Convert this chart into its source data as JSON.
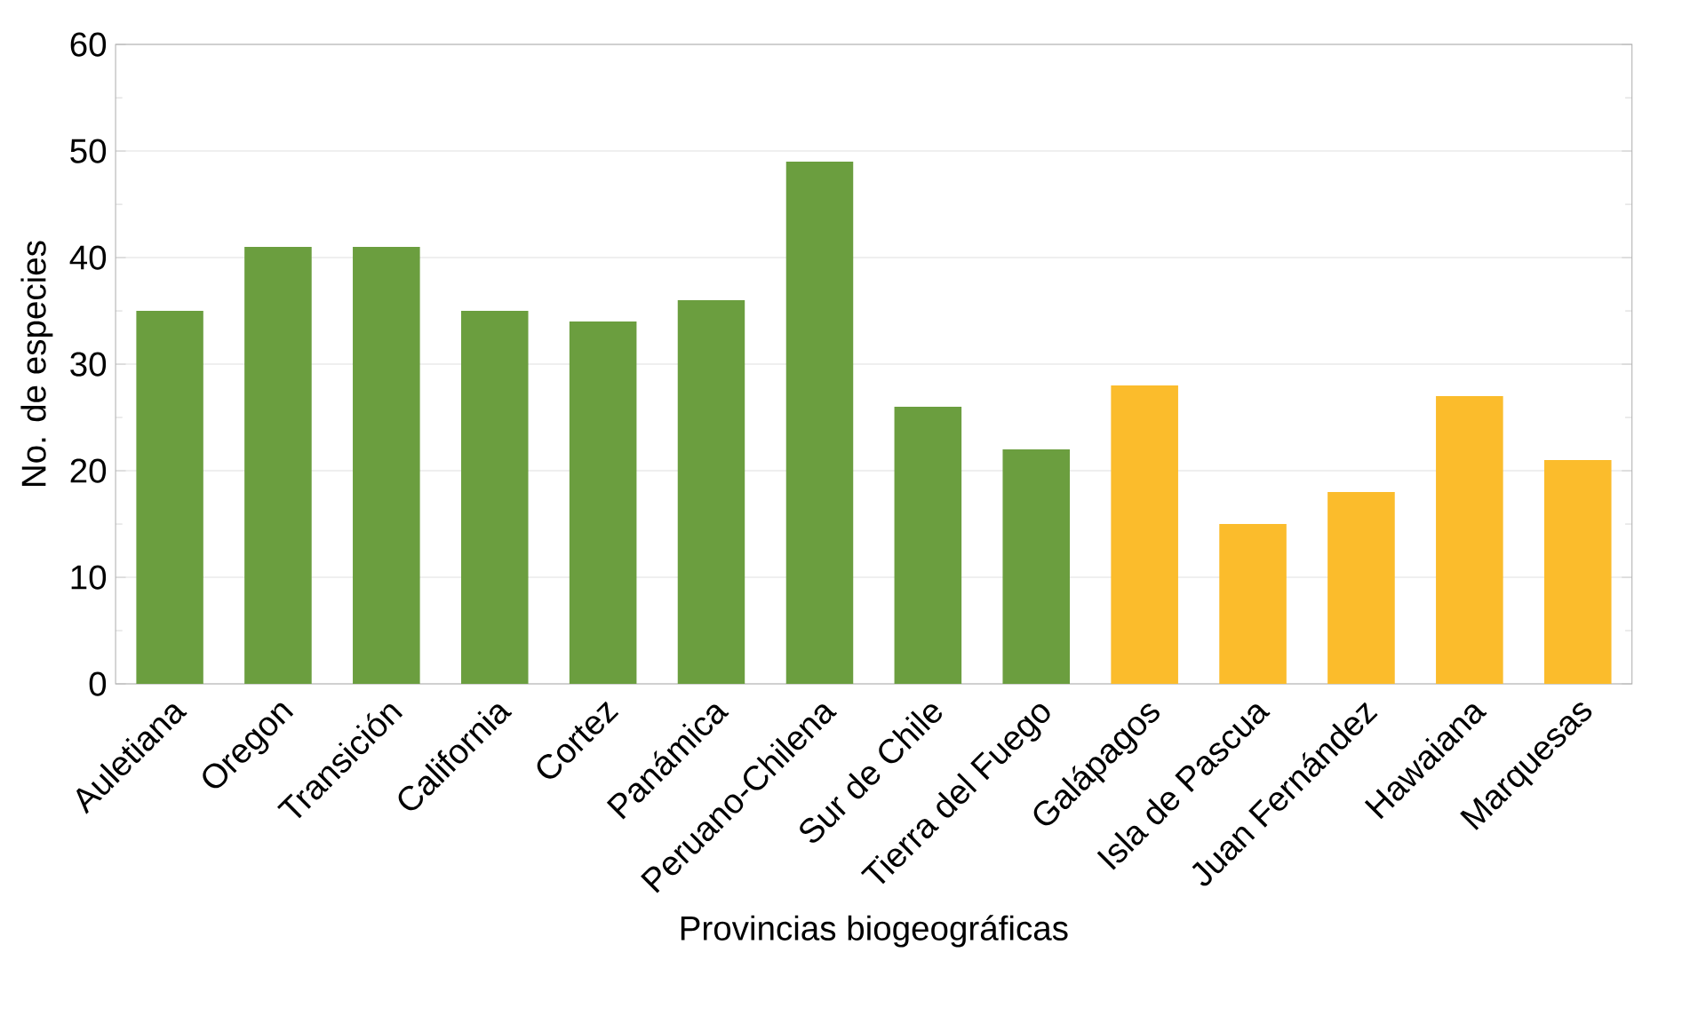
{
  "chart_data": {
    "type": "bar",
    "xlabel": "Provincias biogeográficas",
    "ylabel": "No. de especies",
    "categories": [
      "Auletiana",
      "Oregon",
      "Transición",
      "California",
      "Cortez",
      "Panámica",
      "Peruano-Chilena",
      "Sur de Chile",
      "Tierra del Fuego",
      "Galápagos",
      "Isla de Pascua",
      "Juan Fernández",
      "Hawaiana",
      "Marquesas"
    ],
    "values": [
      35,
      41,
      41,
      35,
      34,
      36,
      49,
      26,
      22,
      28,
      15,
      18,
      27,
      21
    ],
    "colors": [
      "#6b9e3f",
      "#6b9e3f",
      "#6b9e3f",
      "#6b9e3f",
      "#6b9e3f",
      "#6b9e3f",
      "#6b9e3f",
      "#6b9e3f",
      "#6b9e3f",
      "#fbbc2c",
      "#fbbc2c",
      "#fbbc2c",
      "#fbbc2c",
      "#fbbc2c"
    ],
    "ylim": [
      0,
      60
    ],
    "yticks": [
      0,
      10,
      20,
      30,
      40,
      50,
      60
    ],
    "grid": "y"
  }
}
